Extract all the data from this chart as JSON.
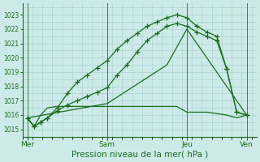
{
  "background_color": "#cceae8",
  "grid_color": "#aed4d2",
  "line_color": "#1a6e1a",
  "ylabel_ticks": [
    1015,
    1016,
    1017,
    1018,
    1019,
    1020,
    1021,
    1022,
    1023
  ],
  "ylim": [
    1014.5,
    1023.8
  ],
  "xlabel": "Pression niveau de la mer( hPa )",
  "day_labels": [
    "Mer",
    "Sam",
    "Jeu",
    "Ven"
  ],
  "day_positions": [
    0,
    48,
    96,
    132
  ],
  "xlim": [
    -3,
    138
  ],
  "line1_x": [
    0,
    4,
    8,
    12,
    18,
    24,
    30,
    36,
    42,
    48,
    54,
    60,
    66,
    72,
    78,
    84,
    90,
    96,
    102,
    108,
    114,
    120,
    126,
    132
  ],
  "line1_y": [
    1015.8,
    1015.2,
    1015.5,
    1015.8,
    1016.5,
    1017.5,
    1018.3,
    1018.8,
    1019.3,
    1019.8,
    1020.6,
    1021.2,
    1021.7,
    1022.2,
    1022.5,
    1022.8,
    1023.0,
    1022.8,
    1022.2,
    1021.8,
    1021.5,
    1019.2,
    1016.2,
    1016.0
  ],
  "line2_x": [
    0,
    4,
    8,
    12,
    18,
    24,
    30,
    36,
    42,
    48,
    54,
    60,
    66,
    72,
    78,
    84,
    90,
    96,
    102,
    108,
    114,
    120,
    126,
    132
  ],
  "line2_y": [
    1015.8,
    1015.2,
    1015.5,
    1015.8,
    1016.3,
    1016.7,
    1017.0,
    1017.3,
    1017.6,
    1017.9,
    1018.8,
    1019.5,
    1020.4,
    1021.2,
    1021.7,
    1022.2,
    1022.4,
    1022.2,
    1021.8,
    1021.5,
    1021.2,
    1019.2,
    1016.2,
    1016.0
  ],
  "line3_x": [
    0,
    48,
    84,
    96,
    132
  ],
  "line3_y": [
    1015.8,
    1016.8,
    1019.5,
    1022.0,
    1016.0
  ],
  "line4_x": [
    0,
    4,
    8,
    12,
    18,
    24,
    30,
    36,
    42,
    48,
    54,
    60,
    66,
    72,
    78,
    84,
    90,
    96,
    102,
    108,
    114,
    120,
    126,
    132
  ],
  "line4_y": [
    1015.8,
    1015.2,
    1016.0,
    1016.5,
    1016.6,
    1016.6,
    1016.6,
    1016.6,
    1016.6,
    1016.6,
    1016.6,
    1016.6,
    1016.6,
    1016.6,
    1016.6,
    1016.6,
    1016.6,
    1016.2,
    1016.2,
    1016.2,
    1016.1,
    1016.0,
    1015.8,
    1016.0
  ]
}
